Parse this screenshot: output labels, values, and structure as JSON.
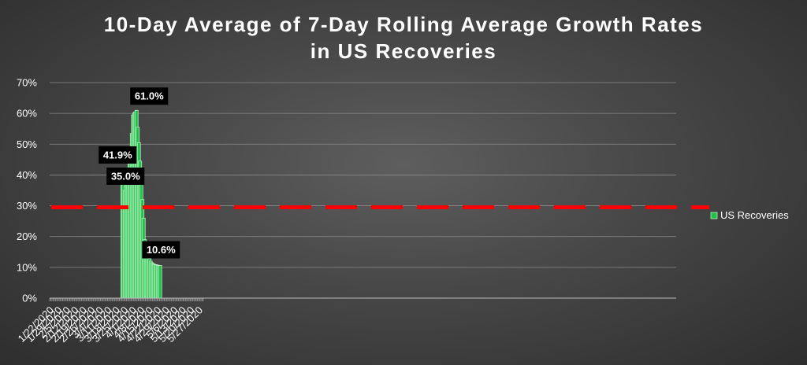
{
  "chart_data": {
    "type": "bar",
    "title_line1": "10-Day Average of 7-Day Rolling Average Growth Rates",
    "title_line2": "in US Recoveries",
    "xlabel": "",
    "ylabel": "",
    "ylim": [
      0,
      70
    ],
    "y_ticks": [
      "0%",
      "10%",
      "20%",
      "30%",
      "40%",
      "50%",
      "60%",
      "70%"
    ],
    "x_tick_labels": [
      "1/22/2020",
      "1/29/2020",
      "2/5/2020",
      "2/12/2020",
      "2/19/2020",
      "2/26/2020",
      "3/4/2020",
      "3/11/2020",
      "3/18/2020",
      "3/25/2020",
      "4/1/2020",
      "4/8/2020",
      "4/15/2020",
      "4/22/2020",
      "4/29/2020",
      "5/6/2020",
      "5/13/2020",
      "5/20/2020",
      "5/27/2020"
    ],
    "grid": "horizontal",
    "legend_position": "right",
    "series": [
      {
        "name": "US Recoveries",
        "color": "#22c24a",
        "x": [
          "3/23/2020",
          "3/24/2020",
          "3/25/2020",
          "3/26/2020",
          "3/27/2020",
          "3/28/2020",
          "3/29/2020",
          "3/30/2020",
          "3/31/2020",
          "4/1/2020",
          "4/2/2020",
          "4/3/2020",
          "4/4/2020",
          "4/5/2020",
          "4/6/2020",
          "4/7/2020",
          "4/8/2020",
          "4/9/2020",
          "4/10/2020",
          "4/11/2020",
          "4/12/2020",
          "4/13/2020",
          "4/14/2020",
          "4/15/2020",
          "4/16/2020",
          "4/17/2020",
          "4/18/2020",
          "4/19/2020",
          "4/20/2020",
          "4/21/2020",
          "4/22/2020",
          "4/23/2020",
          "4/24/2020"
        ],
        "values": [
          41.9,
          38.5,
          35.0,
          36.5,
          38.0,
          40.0,
          43.5,
          48.0,
          53.5,
          59.5,
          60.2,
          60.5,
          61.0,
          55.5,
          50.5,
          44.5,
          38.0,
          32.0,
          26.0,
          19.0,
          17.0,
          15.5,
          14.0,
          12.8,
          12.0,
          11.5,
          11.2,
          11.0,
          10.9,
          10.8,
          10.7,
          10.6,
          10.6
        ]
      }
    ],
    "reference_line": {
      "value": 29.5,
      "color": "#ff0000",
      "style": "dashed"
    },
    "annotations": [
      {
        "x": "3/23/2020",
        "value": 41.9,
        "text": "41.9%"
      },
      {
        "x": "3/25/2020",
        "value": 35.0,
        "text": "35.0%"
      },
      {
        "x": "4/4/2020",
        "value": 61.0,
        "text": "61.0%"
      },
      {
        "x": "4/24/2020",
        "value": 10.6,
        "text": "10.6%"
      }
    ]
  }
}
